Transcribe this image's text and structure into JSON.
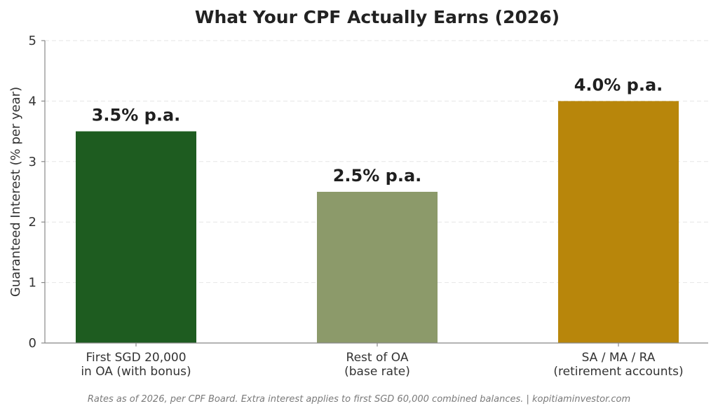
{
  "chart_data": {
    "type": "bar",
    "title": "What Your CPF Actually Earns (2026)",
    "ylabel": "Guaranteed Interest (% per year)",
    "xlabel": "",
    "ylim": [
      0,
      5
    ],
    "yticks": [
      "0",
      "1",
      "2",
      "3",
      "4",
      "5"
    ],
    "grid": true,
    "categories": [
      [
        "First SGD 20,000",
        "in OA (with bonus)"
      ],
      [
        "Rest of OA",
        "(base rate)"
      ],
      [
        "SA / MA / RA",
        "(retirement accounts)"
      ]
    ],
    "values": [
      3.5,
      2.5,
      4.0
    ],
    "data_labels": [
      "3.5% p.a.",
      "2.5% p.a.",
      "4.0% p.a."
    ],
    "colors": [
      "#1e5c20",
      "#8c9a6a",
      "#b8860b"
    ]
  },
  "footnote": "Rates as of 2026, per CPF Board. Extra interest applies to first SGD 60,000 combined balances. | kopitiaminvestor.com"
}
